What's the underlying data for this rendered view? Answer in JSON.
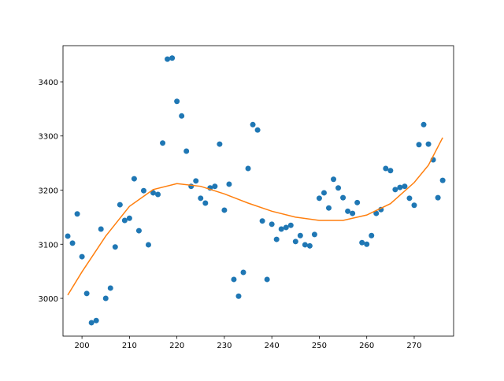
{
  "chart_data": {
    "type": "scatter",
    "xlim": [
      196,
      278.3
    ],
    "ylim": [
      2930.2,
      3466.9
    ],
    "xticks": [
      200,
      210,
      220,
      230,
      240,
      250,
      260,
      270
    ],
    "yticks": [
      3000,
      3100,
      3200,
      3300,
      3400
    ],
    "series": [
      {
        "type": "scatter",
        "color": "#1f77b4",
        "x": [
          197,
          198,
          199,
          200,
          201,
          202,
          203,
          204,
          205,
          206,
          207,
          208,
          209,
          210,
          211,
          212,
          213,
          214,
          215,
          216,
          217,
          218,
          219,
          220,
          221,
          222,
          223,
          224,
          225,
          226,
          227,
          228,
          229,
          230,
          231,
          232,
          233,
          234,
          235,
          236,
          237,
          238,
          239,
          240,
          241,
          242,
          243,
          244,
          245,
          246,
          247,
          248,
          249,
          250,
          251,
          252,
          253,
          254,
          255,
          256,
          257,
          258,
          259,
          260,
          261,
          262,
          263,
          264,
          265,
          266,
          267,
          268,
          269,
          270,
          271,
          272,
          273,
          274,
          275,
          276
        ],
        "values": [
          3115,
          3102,
          3156,
          3077,
          3009,
          2955,
          2959,
          3128,
          3000,
          3019,
          3095,
          3173,
          3144,
          3148,
          3221,
          3125,
          3199,
          3099,
          3195,
          3192,
          3287,
          3442,
          3444,
          3364,
          3337,
          3272,
          3207,
          3217,
          3185,
          3176,
          3204,
          3207,
          3285,
          3163,
          3211,
          3035,
          3004,
          3048,
          3240,
          3321,
          3311,
          3143,
          3035,
          3137,
          3109,
          3128,
          3131,
          3135,
          3105,
          3116,
          3099,
          3097,
          3118,
          3185,
          3195,
          3167,
          3220,
          3204,
          3186,
          3161,
          3157,
          3177,
          3103,
          3100,
          3116,
          3157,
          3164,
          3240,
          3236,
          3201,
          3205,
          3207,
          3185,
          3172,
          3284,
          3321,
          3285,
          3256,
          3186,
          3218
        ]
      },
      {
        "type": "line",
        "color": "#ff7f0e",
        "x": [
          197,
          200,
          205,
          210,
          215,
          220,
          225,
          230,
          235,
          240,
          245,
          250,
          255,
          260,
          265,
          270,
          273,
          276
        ],
        "values": [
          3006,
          3049,
          3115,
          3170,
          3201,
          3212,
          3207,
          3193,
          3176,
          3161,
          3150,
          3144,
          3144,
          3154,
          3175,
          3214,
          3246,
          3297
        ]
      }
    ]
  }
}
